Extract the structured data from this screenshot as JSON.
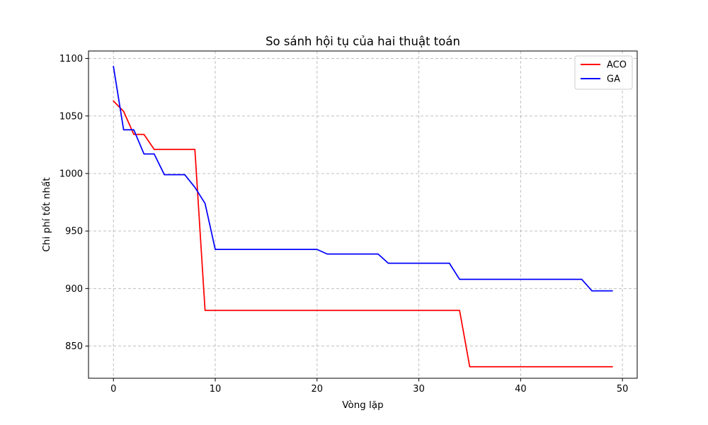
{
  "chart_data": {
    "type": "line",
    "title": "So sánh hội tụ của hai thuật toán",
    "xlabel": "Vòng lặp",
    "ylabel": "Chi phí tốt nhất",
    "xlim": [
      -2.45,
      51.45
    ],
    "ylim": [
      822,
      1106.5
    ],
    "xticks": [
      0,
      10,
      20,
      30,
      40,
      50
    ],
    "yticks": [
      850,
      900,
      950,
      1000,
      1050,
      1100
    ],
    "grid": true,
    "legend_position": "top-right",
    "series": [
      {
        "name": "ACO",
        "color": "#ff0000",
        "x": [
          0,
          1,
          2,
          3,
          4,
          5,
          6,
          7,
          8,
          9,
          10,
          11,
          12,
          13,
          14,
          15,
          16,
          17,
          18,
          19,
          20,
          21,
          22,
          23,
          24,
          25,
          26,
          27,
          28,
          29,
          30,
          31,
          32,
          33,
          34,
          35,
          36,
          37,
          38,
          39,
          40,
          41,
          42,
          43,
          44,
          45,
          46,
          47,
          48,
          49
        ],
        "values": [
          1063,
          1054,
          1034,
          1034,
          1021,
          1021,
          1021,
          1021,
          1021,
          881,
          881,
          881,
          881,
          881,
          881,
          881,
          881,
          881,
          881,
          881,
          881,
          881,
          881,
          881,
          881,
          881,
          881,
          881,
          881,
          881,
          881,
          881,
          881,
          881,
          881,
          832,
          832,
          832,
          832,
          832,
          832,
          832,
          832,
          832,
          832,
          832,
          832,
          832,
          832,
          832
        ]
      },
      {
        "name": "GA",
        "color": "#0000ff",
        "x": [
          0,
          1,
          2,
          3,
          4,
          5,
          6,
          7,
          8,
          9,
          10,
          11,
          12,
          13,
          14,
          15,
          16,
          17,
          18,
          19,
          20,
          21,
          22,
          23,
          24,
          25,
          26,
          27,
          28,
          29,
          30,
          31,
          32,
          33,
          34,
          35,
          36,
          37,
          38,
          39,
          40,
          41,
          42,
          43,
          44,
          45,
          46,
          47,
          48,
          49
        ],
        "values": [
          1093,
          1038,
          1038,
          1017,
          1017,
          999,
          999,
          999,
          988,
          974,
          934,
          934,
          934,
          934,
          934,
          934,
          934,
          934,
          934,
          934,
          934,
          930,
          930,
          930,
          930,
          930,
          930,
          922,
          922,
          922,
          922,
          922,
          922,
          922,
          908,
          908,
          908,
          908,
          908,
          908,
          908,
          908,
          908,
          908,
          908,
          908,
          908,
          898,
          898,
          898
        ]
      }
    ]
  }
}
